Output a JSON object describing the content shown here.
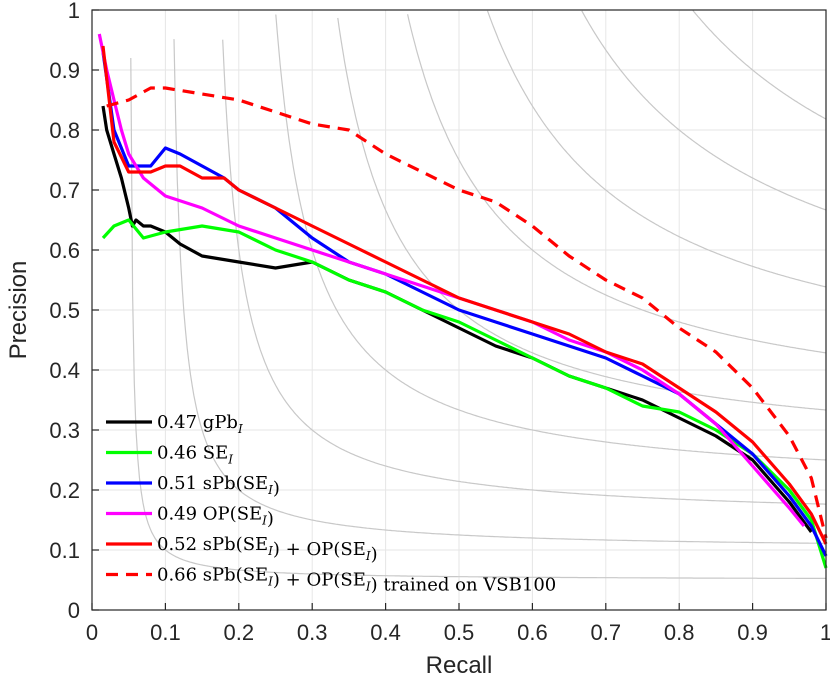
{
  "chart_data": {
    "type": "line",
    "title": "",
    "xlabel": "Recall",
    "ylabel": "Precision",
    "xlim": [
      0,
      1
    ],
    "ylim": [
      0,
      1
    ],
    "grid": true,
    "legend_position": "bottom-left",
    "xticks": [
      "0",
      "0.1",
      "0.2",
      "0.3",
      "0.4",
      "0.5",
      "0.6",
      "0.7",
      "0.8",
      "0.9",
      "1"
    ],
    "yticks": [
      "0",
      "0.1",
      "0.2",
      "0.3",
      "0.4",
      "0.5",
      "0.6",
      "0.7",
      "0.8",
      "0.9",
      "1"
    ],
    "iso_f_curves": [
      0.1,
      0.2,
      0.3,
      0.4,
      0.5,
      0.6,
      0.7,
      0.8,
      0.9
    ],
    "series": [
      {
        "id": "gpb",
        "name": "0.47 gPb_I",
        "legend_main": "0.47 gPb",
        "legend_sub": "I",
        "legend_tail": "",
        "color": "#000000",
        "dash": "solid",
        "x": [
          0.015,
          0.02,
          0.03,
          0.04,
          0.05,
          0.055,
          0.06,
          0.07,
          0.08,
          0.1,
          0.12,
          0.15,
          0.2,
          0.25,
          0.3,
          0.35,
          0.4,
          0.45,
          0.5,
          0.55,
          0.6,
          0.65,
          0.7,
          0.75,
          0.8,
          0.85,
          0.9,
          0.95,
          0.98
        ],
        "y": [
          0.84,
          0.8,
          0.76,
          0.72,
          0.67,
          0.64,
          0.65,
          0.64,
          0.64,
          0.63,
          0.61,
          0.59,
          0.58,
          0.57,
          0.58,
          0.55,
          0.53,
          0.5,
          0.47,
          0.44,
          0.42,
          0.39,
          0.37,
          0.35,
          0.32,
          0.29,
          0.25,
          0.18,
          0.13
        ]
      },
      {
        "id": "se",
        "name": "0.46 SE_I",
        "legend_main": "0.46 SE",
        "legend_sub": "I",
        "legend_tail": "",
        "color": "#00ff00",
        "dash": "solid",
        "x": [
          0.015,
          0.03,
          0.05,
          0.07,
          0.1,
          0.15,
          0.2,
          0.25,
          0.3,
          0.35,
          0.4,
          0.45,
          0.5,
          0.55,
          0.6,
          0.65,
          0.7,
          0.75,
          0.8,
          0.85,
          0.9,
          0.95,
          0.98,
          1.0
        ],
        "y": [
          0.62,
          0.64,
          0.65,
          0.62,
          0.63,
          0.64,
          0.63,
          0.6,
          0.58,
          0.55,
          0.53,
          0.5,
          0.48,
          0.45,
          0.42,
          0.39,
          0.37,
          0.34,
          0.33,
          0.3,
          0.26,
          0.2,
          0.15,
          0.07
        ]
      },
      {
        "id": "spb",
        "name": "0.51 sPb(SE_I)",
        "legend_main": "0.51 sPb(SE",
        "legend_sub": "I",
        "legend_tail": ")",
        "color": "#0000ff",
        "dash": "solid",
        "x": [
          0.015,
          0.03,
          0.05,
          0.08,
          0.1,
          0.12,
          0.15,
          0.18,
          0.2,
          0.25,
          0.3,
          0.35,
          0.4,
          0.45,
          0.5,
          0.55,
          0.6,
          0.65,
          0.7,
          0.75,
          0.8,
          0.85,
          0.9,
          0.95,
          0.98,
          1.0
        ],
        "y": [
          0.93,
          0.8,
          0.74,
          0.74,
          0.77,
          0.76,
          0.74,
          0.72,
          0.7,
          0.67,
          0.62,
          0.58,
          0.56,
          0.53,
          0.5,
          0.48,
          0.46,
          0.44,
          0.42,
          0.39,
          0.36,
          0.31,
          0.26,
          0.19,
          0.14,
          0.09
        ]
      },
      {
        "id": "op",
        "name": "0.49 OP(SE_I)",
        "legend_main": "0.49 OP(SE",
        "legend_sub": "I",
        "legend_tail": ")",
        "color": "#ff00ff",
        "dash": "solid",
        "x": [
          0.01,
          0.02,
          0.03,
          0.04,
          0.05,
          0.07,
          0.1,
          0.15,
          0.2,
          0.25,
          0.3,
          0.35,
          0.4,
          0.45,
          0.5,
          0.55,
          0.6,
          0.65,
          0.7,
          0.75,
          0.8,
          0.85,
          0.9,
          0.95,
          0.97
        ],
        "y": [
          0.96,
          0.9,
          0.85,
          0.8,
          0.76,
          0.72,
          0.69,
          0.67,
          0.64,
          0.62,
          0.6,
          0.58,
          0.56,
          0.54,
          0.52,
          0.5,
          0.48,
          0.45,
          0.43,
          0.4,
          0.36,
          0.31,
          0.24,
          0.17,
          0.14
        ]
      },
      {
        "id": "combo",
        "name": "0.52 sPb(SE_I) + OP(SE_I)",
        "legend_main": "0.52 sPb(SE",
        "legend_sub": "I",
        "legend_tail": ") + OP(SE",
        "legend_sub2": "I",
        "legend_tail2": ")",
        "color": "#ff0000",
        "dash": "solid",
        "x": [
          0.015,
          0.03,
          0.05,
          0.08,
          0.1,
          0.12,
          0.15,
          0.18,
          0.2,
          0.25,
          0.3,
          0.35,
          0.4,
          0.45,
          0.5,
          0.55,
          0.6,
          0.65,
          0.7,
          0.75,
          0.8,
          0.85,
          0.9,
          0.95,
          0.98,
          1.0
        ],
        "y": [
          0.94,
          0.78,
          0.73,
          0.73,
          0.74,
          0.74,
          0.72,
          0.72,
          0.7,
          0.67,
          0.64,
          0.61,
          0.58,
          0.55,
          0.52,
          0.5,
          0.48,
          0.46,
          0.43,
          0.41,
          0.37,
          0.33,
          0.28,
          0.21,
          0.16,
          0.11
        ]
      },
      {
        "id": "combo_vsb",
        "name": "0.66 sPb(SE_I) + OP(SE_I) trained on VSB100",
        "legend_main": "0.66 sPb(SE",
        "legend_sub": "I",
        "legend_tail": ") + OP(SE",
        "legend_sub2": "I",
        "legend_tail2": ") trained on VSB100",
        "color": "#ff0000",
        "dash": "dashed",
        "x": [
          0.02,
          0.05,
          0.08,
          0.1,
          0.15,
          0.2,
          0.25,
          0.3,
          0.35,
          0.4,
          0.45,
          0.5,
          0.55,
          0.6,
          0.65,
          0.7,
          0.75,
          0.8,
          0.85,
          0.9,
          0.95,
          0.98,
          1.0
        ],
        "y": [
          0.84,
          0.85,
          0.87,
          0.87,
          0.86,
          0.85,
          0.83,
          0.81,
          0.8,
          0.76,
          0.73,
          0.7,
          0.68,
          0.64,
          0.59,
          0.55,
          0.52,
          0.47,
          0.43,
          0.37,
          0.29,
          0.22,
          0.12
        ]
      }
    ]
  }
}
